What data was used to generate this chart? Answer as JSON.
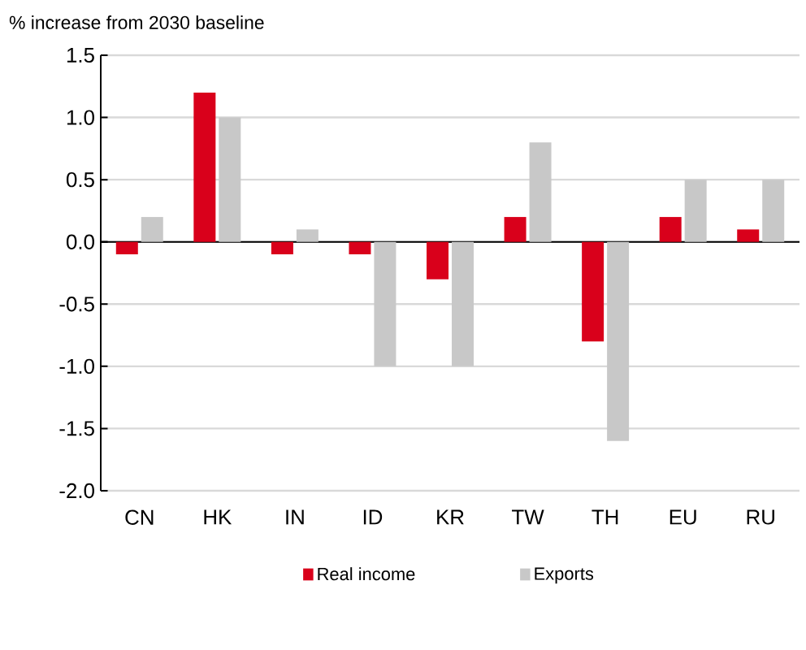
{
  "chart_data": {
    "type": "bar",
    "title": "% increase from 2030 baseline",
    "categories": [
      "CN",
      "HK",
      "IN",
      "ID",
      "KR",
      "TW",
      "TH",
      "EU",
      "RU"
    ],
    "series": [
      {
        "name": "Real income",
        "color": "#d9001b",
        "values": [
          -0.1,
          1.2,
          -0.1,
          -0.1,
          -0.3,
          0.2,
          -0.8,
          0.2,
          0.1
        ]
      },
      {
        "name": "Exports",
        "color": "#c8c8c8",
        "values": [
          0.2,
          1.0,
          0.1,
          -1.0,
          -1.0,
          0.8,
          -1.6,
          0.5,
          0.5
        ]
      }
    ],
    "ylim": [
      -2.0,
      1.5
    ],
    "yticks": [
      {
        "value": -2.0,
        "label": "-2.0"
      },
      {
        "value": -1.5,
        "label": "-1.5"
      },
      {
        "value": -1.0,
        "label": "-1.0"
      },
      {
        "value": -0.5,
        "label": "-0.5"
      },
      {
        "value": 0.0,
        "label": "0.0"
      },
      {
        "value": 0.5,
        "label": "0.5"
      },
      {
        "value": 1.0,
        "label": "1.0"
      },
      {
        "value": 1.5,
        "label": "1.5"
      }
    ],
    "grid": "y",
    "legend": "bottom"
  }
}
